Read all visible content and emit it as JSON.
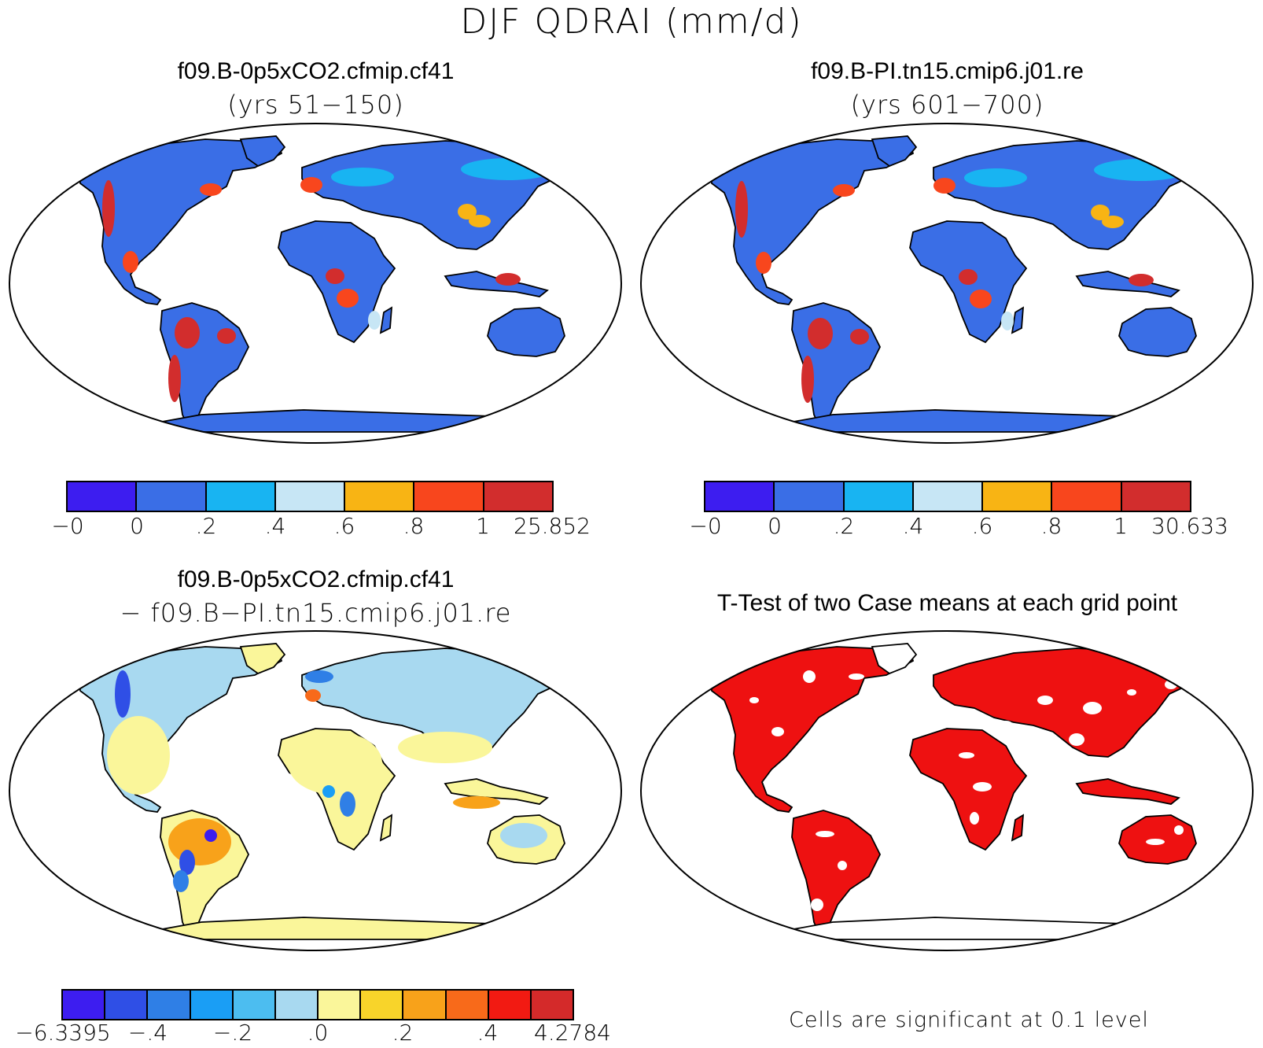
{
  "figure": {
    "title": "DJF QDRAI (mm/d)"
  },
  "panels": [
    {
      "id": "case1",
      "title": "f09.B-0p5xCO2.cfmip.cf41",
      "subtitle": "(yrs 51−150)",
      "colorbar": {
        "colors": [
          "#3d1df0",
          "#3a6ee6",
          "#18b4f2",
          "#c7e6f5",
          "#f8b414",
          "#f8461d",
          "#d22d2d"
        ],
        "labels": [
          "−0",
          "0",
          ".2",
          ".4",
          ".6",
          ".8",
          "1",
          "25.852"
        ]
      }
    },
    {
      "id": "case2",
      "title": "f09.B-PI.tn15.cmip6.j01.re",
      "subtitle": "(yrs 601−700)",
      "colorbar": {
        "colors": [
          "#3d1df0",
          "#3a6ee6",
          "#18b4f2",
          "#c7e6f5",
          "#f8b414",
          "#f8461d",
          "#d22d2d"
        ],
        "labels": [
          "−0",
          "0",
          ".2",
          ".4",
          ".6",
          ".8",
          "1",
          "30.633"
        ]
      }
    },
    {
      "id": "difference",
      "title": "f09.B-0p5xCO2.cfmip.cf41",
      "subtitle": "− f09.B−PI.tn15.cmip6.j01.re",
      "colorbar": {
        "colors": [
          "#3d1df0",
          "#2f4fe6",
          "#2f7fe6",
          "#1a9ef5",
          "#4cbdf0",
          "#a8d9f0",
          "#faf69a",
          "#f8d42a",
          "#f8a21a",
          "#f86a1a",
          "#f21a12",
          "#d42a2a"
        ],
        "labels": [
          "−6.3395",
          "−.4",
          "−.2",
          ".0",
          ".2",
          ".4",
          "4.2784"
        ]
      }
    },
    {
      "id": "ttest",
      "title": "T-Test of two Case means at each grid point",
      "significance_color": "#ee1111",
      "note": "Cells are significant at 0.1 level"
    }
  ]
}
